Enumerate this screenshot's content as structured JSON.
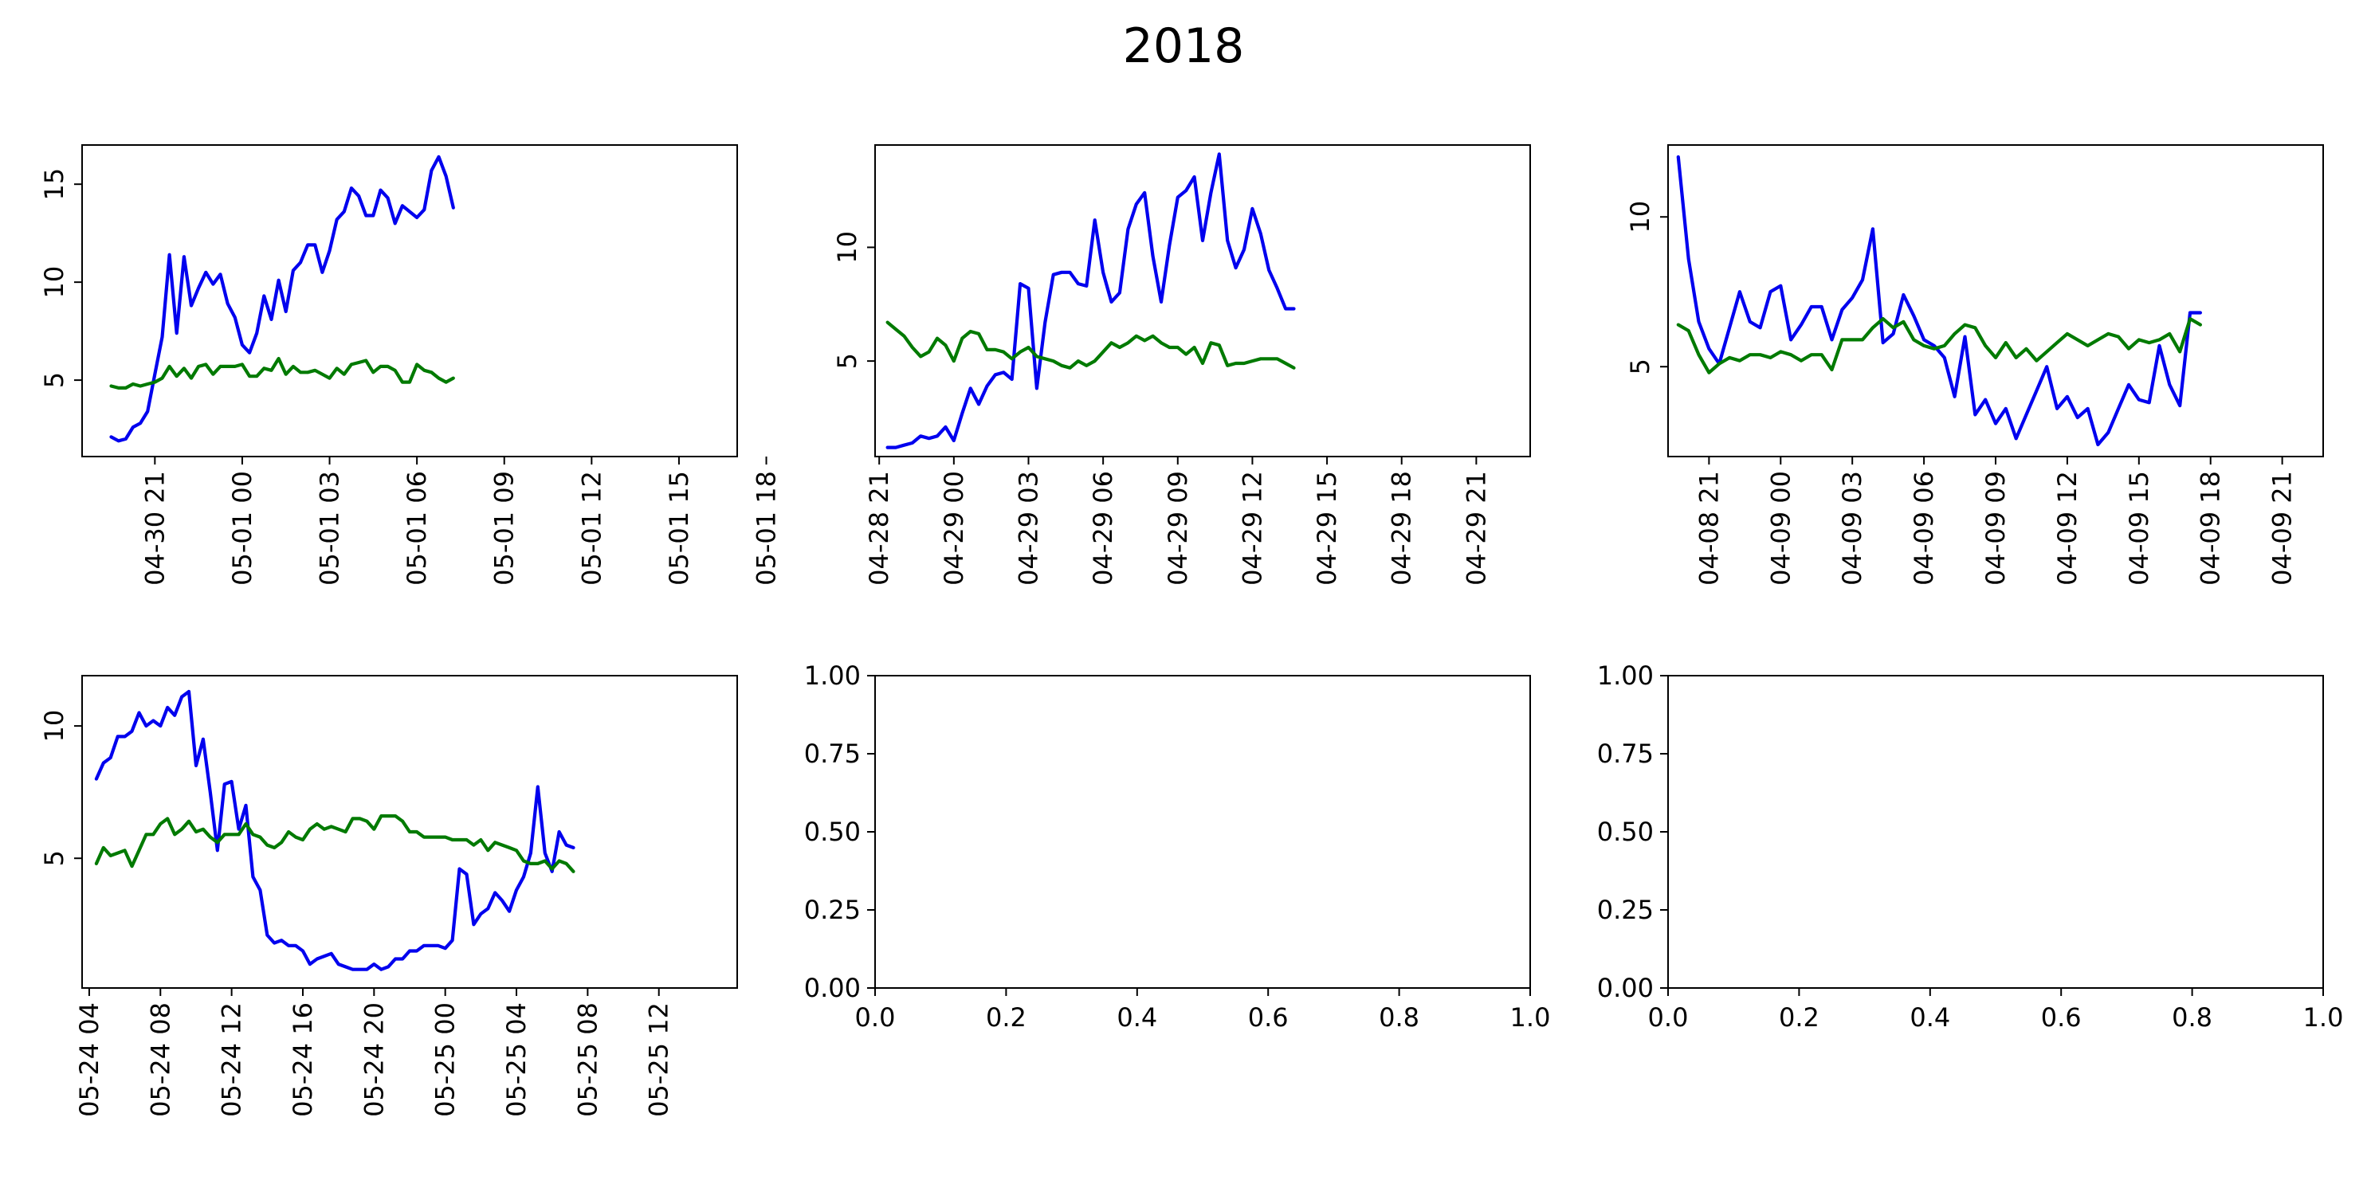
{
  "figure": {
    "title": "2018"
  },
  "colors": {
    "series_a": "#0000ee",
    "series_b": "#007a00",
    "axes": "#000000",
    "background": "#ffffff"
  },
  "chart_data": [
    {
      "id": "p1",
      "type": "line",
      "empty": false,
      "xlim": [
        -4,
        86
      ],
      "ylim": [
        1.1,
        17.0
      ],
      "yticks": [
        5,
        10,
        15
      ],
      "xticks": [
        {
          "x": 6,
          "label": "04-30 21"
        },
        {
          "x": 18,
          "label": "05-01 00"
        },
        {
          "x": 30,
          "label": "05-01 03"
        },
        {
          "x": 42,
          "label": "05-01 06"
        },
        {
          "x": 54,
          "label": "05-01 09"
        },
        {
          "x": 66,
          "label": "05-01 12"
        },
        {
          "x": 78,
          "label": "05-01 15"
        },
        {
          "x": 90,
          "label": "05-01 18"
        }
      ],
      "series": [
        {
          "color": "#0000ee",
          "values": [
            2.1,
            1.9,
            2.0,
            2.6,
            2.8,
            3.4,
            5.3,
            7.2,
            11.4,
            7.4,
            11.3,
            8.8,
            9.7,
            10.5,
            9.9,
            10.4,
            8.9,
            8.2,
            6.8,
            6.4,
            7.4,
            9.3,
            8.1,
            10.1,
            8.5,
            10.6,
            11.0,
            11.9,
            11.9,
            10.5,
            11.6,
            13.2,
            13.6,
            14.8,
            14.4,
            13.4,
            13.4,
            14.7,
            14.3,
            13.0,
            13.9,
            13.6,
            13.3,
            13.7,
            15.7,
            16.4,
            15.4,
            13.8
          ]
        },
        {
          "color": "#007a00",
          "values": [
            4.7,
            4.6,
            4.6,
            4.8,
            4.7,
            4.8,
            4.9,
            5.1,
            5.7,
            5.2,
            5.6,
            5.1,
            5.7,
            5.8,
            5.3,
            5.7,
            5.7,
            5.7,
            5.8,
            5.2,
            5.2,
            5.6,
            5.5,
            6.1,
            5.3,
            5.7,
            5.4,
            5.4,
            5.5,
            5.3,
            5.1,
            5.6,
            5.3,
            5.8,
            5.9,
            6.0,
            5.4,
            5.7,
            5.7,
            5.5,
            4.9,
            4.9,
            5.8,
            5.5,
            5.4,
            5.1,
            4.9,
            5.1
          ]
        }
      ]
    },
    {
      "id": "p2",
      "type": "line",
      "empty": false,
      "xlim": [
        -1.5,
        77.5
      ],
      "ylim": [
        0.8,
        14.5
      ],
      "yticks": [
        5,
        10
      ],
      "xticks": [
        {
          "x": -1,
          "label": "04-28 21"
        },
        {
          "x": 8,
          "label": "04-29 00"
        },
        {
          "x": 17,
          "label": "04-29 03"
        },
        {
          "x": 26,
          "label": "04-29 06"
        },
        {
          "x": 35,
          "label": "04-29 09"
        },
        {
          "x": 44,
          "label": "04-29 12"
        },
        {
          "x": 53,
          "label": "04-29 15"
        },
        {
          "x": 62,
          "label": "04-29 18"
        },
        {
          "x": 71,
          "label": "04-29 21"
        }
      ],
      "series": [
        {
          "color": "#0000ee",
          "values": [
            1.2,
            1.2,
            1.3,
            1.4,
            1.7,
            1.6,
            1.7,
            2.1,
            1.5,
            2.7,
            3.8,
            3.1,
            3.9,
            4.4,
            4.5,
            4.2,
            8.4,
            8.2,
            3.8,
            6.7,
            8.8,
            8.9,
            8.9,
            8.4,
            8.3,
            11.2,
            8.9,
            7.6,
            8.0,
            10.8,
            11.9,
            12.4,
            9.6,
            7.6,
            10.1,
            12.2,
            12.5,
            13.1,
            10.3,
            12.4,
            14.1,
            10.3,
            9.1,
            9.9,
            11.7,
            10.6,
            9.0,
            8.2,
            7.3,
            7.3
          ]
        },
        {
          "color": "#007a00",
          "values": [
            6.7,
            6.4,
            6.1,
            5.6,
            5.2,
            5.4,
            6.0,
            5.7,
            5.0,
            6.0,
            6.3,
            6.2,
            5.5,
            5.5,
            5.4,
            5.1,
            5.4,
            5.6,
            5.2,
            5.1,
            5.0,
            4.8,
            4.7,
            5.0,
            4.8,
            5.0,
            5.4,
            5.8,
            5.6,
            5.8,
            6.1,
            5.9,
            6.1,
            5.8,
            5.6,
            5.6,
            5.3,
            5.6,
            4.9,
            5.8,
            5.7,
            4.8,
            4.9,
            4.9,
            5.0,
            5.1,
            5.1,
            5.1,
            4.9,
            4.7
          ]
        }
      ]
    },
    {
      "id": "p3",
      "type": "line",
      "empty": false,
      "xlim": [
        -1,
        63
      ],
      "ylim": [
        2.0,
        12.4
      ],
      "yticks": [
        5,
        10
      ],
      "xticks": [
        {
          "x": 3,
          "label": "04-08 21"
        },
        {
          "x": 10,
          "label": "04-09 00"
        },
        {
          "x": 17,
          "label": "04-09 03"
        },
        {
          "x": 24,
          "label": "04-09 06"
        },
        {
          "x": 31,
          "label": "04-09 09"
        },
        {
          "x": 38,
          "label": "04-09 12"
        },
        {
          "x": 45,
          "label": "04-09 15"
        },
        {
          "x": 52,
          "label": "04-09 18"
        },
        {
          "x": 59,
          "label": "04-09 21"
        }
      ],
      "series": [
        {
          "color": "#0000ee",
          "values": [
            12.0,
            8.6,
            6.5,
            5.6,
            5.1,
            6.3,
            7.5,
            6.5,
            6.3,
            7.5,
            7.7,
            5.9,
            6.4,
            7.0,
            7.0,
            5.9,
            6.9,
            7.3,
            7.9,
            9.6,
            5.8,
            6.1,
            7.4,
            6.7,
            5.9,
            5.7,
            5.3,
            4.0,
            6.0,
            3.4,
            3.9,
            3.1,
            3.6,
            2.6,
            3.4,
            4.2,
            5.0,
            3.6,
            4.0,
            3.3,
            3.6,
            2.4,
            2.8,
            3.6,
            4.4,
            3.9,
            3.8,
            5.7,
            4.4,
            3.7,
            6.8,
            6.8
          ]
        },
        {
          "color": "#007a00",
          "values": [
            6.4,
            6.2,
            5.4,
            4.8,
            5.1,
            5.3,
            5.2,
            5.4,
            5.4,
            5.3,
            5.5,
            5.4,
            5.2,
            5.4,
            5.4,
            4.9,
            5.9,
            5.9,
            5.9,
            6.3,
            6.6,
            6.3,
            6.5,
            5.9,
            5.7,
            5.6,
            5.7,
            6.1,
            6.4,
            6.3,
            5.7,
            5.3,
            5.8,
            5.3,
            5.6,
            5.2,
            5.5,
            5.8,
            6.1,
            5.9,
            5.7,
            5.9,
            6.1,
            6.0,
            5.6,
            5.9,
            5.8,
            5.9,
            6.1,
            5.5,
            6.6,
            6.4
          ]
        }
      ]
    },
    {
      "id": "p4",
      "type": "line",
      "empty": false,
      "xlim": [
        -2,
        90
      ],
      "ylim": [
        0.1,
        11.9
      ],
      "yticks": [
        5,
        10
      ],
      "xticks": [
        {
          "x": -1,
          "label": "05-24 04"
        },
        {
          "x": 9,
          "label": "05-24 08"
        },
        {
          "x": 19,
          "label": "05-24 12"
        },
        {
          "x": 29,
          "label": "05-24 16"
        },
        {
          "x": 39,
          "label": "05-24 20"
        },
        {
          "x": 49,
          "label": "05-25 00"
        },
        {
          "x": 59,
          "label": "05-25 04"
        },
        {
          "x": 69,
          "label": "05-25 08"
        },
        {
          "x": 79,
          "label": "05-25 12"
        }
      ],
      "series": [
        {
          "color": "#0000ee",
          "values": [
            8.0,
            8.6,
            8.8,
            9.6,
            9.6,
            9.8,
            10.5,
            10.0,
            10.2,
            10.0,
            10.7,
            10.4,
            11.1,
            11.3,
            8.5,
            9.5,
            7.5,
            5.3,
            7.8,
            7.9,
            6.1,
            7.0,
            4.3,
            3.8,
            2.1,
            1.8,
            1.9,
            1.7,
            1.7,
            1.5,
            1.0,
            1.2,
            1.3,
            1.4,
            1.0,
            0.9,
            0.8,
            0.8,
            0.8,
            1.0,
            0.8,
            0.9,
            1.2,
            1.2,
            1.5,
            1.5,
            1.7,
            1.7,
            1.7,
            1.6,
            1.9,
            4.6,
            4.4,
            2.5,
            2.9,
            3.1,
            3.7,
            3.4,
            3.0,
            3.8,
            4.3,
            5.2,
            7.7,
            5.2,
            4.5,
            6.0,
            5.5,
            5.4
          ]
        },
        {
          "color": "#007a00",
          "values": [
            4.8,
            5.4,
            5.1,
            5.2,
            5.3,
            4.7,
            5.3,
            5.9,
            5.9,
            6.3,
            6.5,
            5.9,
            6.1,
            6.4,
            6.0,
            6.1,
            5.8,
            5.6,
            5.9,
            5.9,
            5.9,
            6.3,
            5.9,
            5.8,
            5.5,
            5.4,
            5.6,
            6.0,
            5.8,
            5.7,
            6.1,
            6.3,
            6.1,
            6.2,
            6.1,
            6.0,
            6.5,
            6.5,
            6.4,
            6.1,
            6.6,
            6.6,
            6.6,
            6.4,
            6.0,
            6.0,
            5.8,
            5.8,
            5.8,
            5.8,
            5.7,
            5.7,
            5.7,
            5.5,
            5.7,
            5.3,
            5.6,
            5.5,
            5.4,
            5.3,
            4.9,
            4.8,
            4.8,
            4.9,
            4.6,
            4.9,
            4.8,
            4.5
          ]
        }
      ]
    },
    {
      "id": "p5",
      "type": "line",
      "empty": true,
      "xlim": [
        0,
        1
      ],
      "ylim": [
        0,
        1
      ],
      "yticks": [
        "0.00",
        "0.25",
        "0.50",
        "0.75",
        "1.00"
      ],
      "xticks": [
        "0.0",
        "0.2",
        "0.4",
        "0.6",
        "0.8",
        "1.0"
      ],
      "series": []
    },
    {
      "id": "p6",
      "type": "line",
      "empty": true,
      "xlim": [
        0,
        1
      ],
      "ylim": [
        0,
        1
      ],
      "yticks": [
        "0.00",
        "0.25",
        "0.50",
        "0.75",
        "1.00"
      ],
      "xticks": [
        "0.0",
        "0.2",
        "0.4",
        "0.6",
        "0.8",
        "1.0"
      ],
      "series": []
    }
  ]
}
